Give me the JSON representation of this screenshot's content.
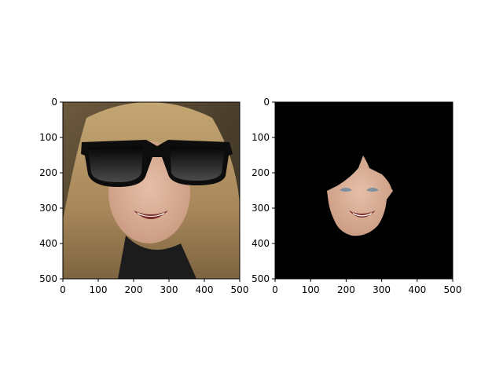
{
  "chart_data": [
    {
      "type": "image",
      "title": "",
      "xlabel": "",
      "ylabel": "",
      "xlim": [
        0,
        500
      ],
      "ylim": [
        500,
        0
      ],
      "xticks": [
        0,
        100,
        200,
        300,
        400,
        500
      ],
      "yticks": [
        0,
        100,
        200,
        300,
        400,
        500
      ],
      "grid": false,
      "content": "woman-face-with-sunglasses-overlay"
    },
    {
      "type": "image",
      "title": "",
      "xlabel": "",
      "ylabel": "",
      "xlim": [
        0,
        500
      ],
      "ylim": [
        500,
        0
      ],
      "xticks": [
        0,
        100,
        200,
        300,
        400,
        500
      ],
      "yticks": [
        0,
        100,
        200,
        300,
        400,
        500
      ],
      "grid": false,
      "content": "face-segmentation-mask-on-black"
    }
  ],
  "colors": {
    "mask_background": "#000000",
    "hair": "#a8875a",
    "skin": "#d9ad95",
    "lens": "#1b1b1b"
  }
}
